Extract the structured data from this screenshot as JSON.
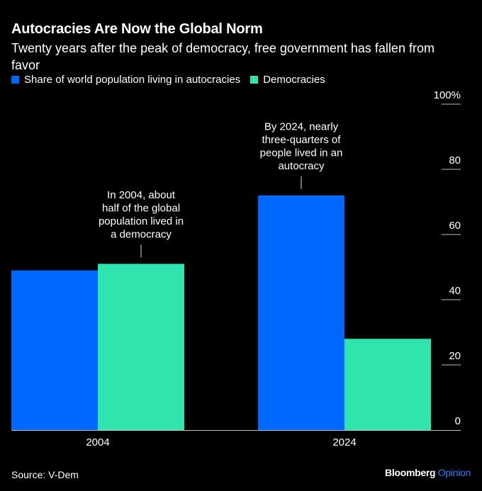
{
  "chart_data": {
    "type": "bar",
    "title": "Autocracies Are Now the Global Norm",
    "subtitle": "Twenty years after the peak of democracy, free government has fallen from favor",
    "categories": [
      "2004",
      "2024"
    ],
    "series": [
      {
        "name": "Share of world population living in autocracies",
        "color": "#0068ff",
        "values": [
          49,
          72
        ]
      },
      {
        "name": "Democracies",
        "color": "#2fe5ad",
        "values": [
          51,
          28
        ]
      }
    ],
    "xlabel": "",
    "ylabel": "",
    "ylim": [
      0,
      100
    ],
    "yticks": [
      0,
      20,
      40,
      60,
      80,
      100
    ],
    "ytick_labels": [
      "0",
      "20",
      "40",
      "60",
      "80",
      "100%"
    ],
    "y_axis_position": "right",
    "grid": false,
    "legend_position": "top-left",
    "annotations": [
      {
        "category": "2004",
        "series": "Democracies",
        "text": "In 2004, about half of the global population lived in a democracy",
        "lines": [
          "In 2004, about",
          "half of the global",
          "population lived in",
          "a democracy"
        ]
      },
      {
        "category": "2024",
        "series": "Share of world population living in autocracies",
        "text": "By 2024, nearly three-quarters of people lived in an autocracy",
        "lines": [
          "By 2024, nearly",
          "three-quarters of",
          "people lived in an",
          "autocracy"
        ]
      }
    ],
    "source": "Source: V-Dem"
  },
  "footer": {
    "source": "Source: V-Dem",
    "brand_main": "Bloomberg",
    "brand_accent": "Opinion"
  },
  "colors": {
    "background": "#000000",
    "autocracies": "#0068ff",
    "democracies": "#2fe5ad",
    "brand_accent": "#2b7bff"
  }
}
